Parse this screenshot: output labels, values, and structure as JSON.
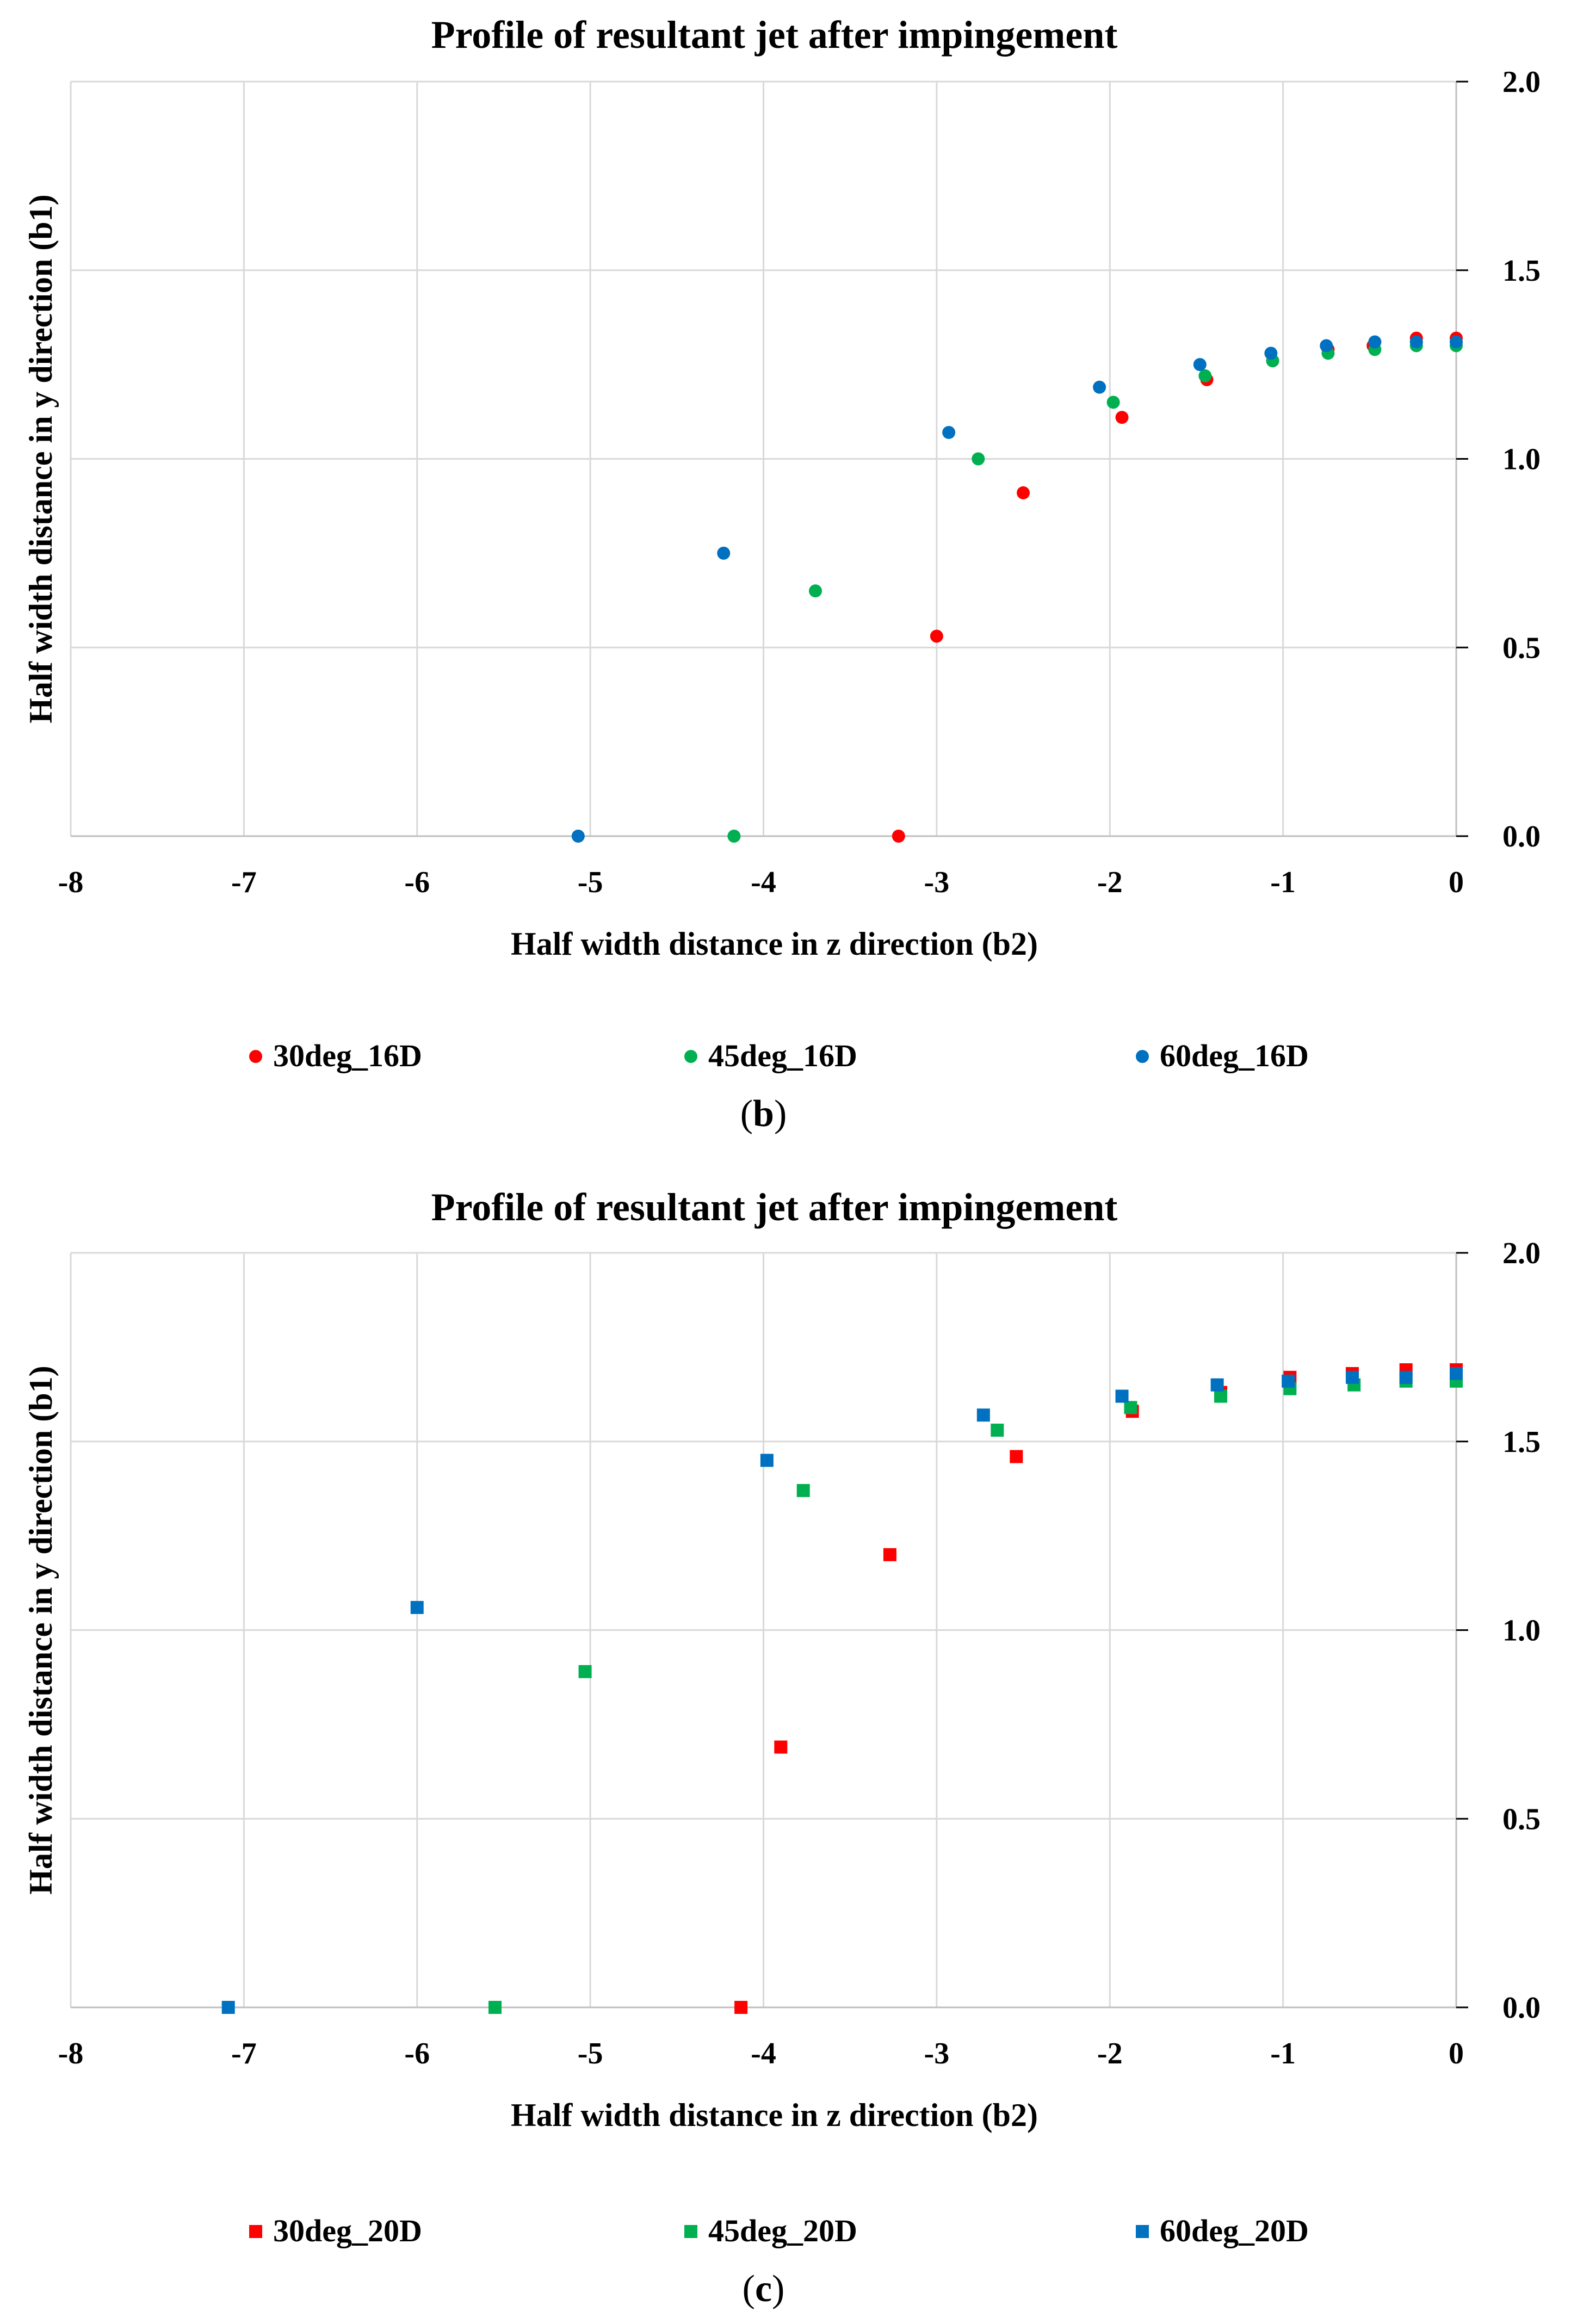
{
  "chart_data": [
    {
      "type": "scatter",
      "title": "Profile of resultant jet after impingement",
      "xlabel": "Half width distance in z direction (b2)",
      "ylabel": "Half width distance in y direction (b1)",
      "xlim": [
        -8,
        0
      ],
      "ylim": [
        0,
        2
      ],
      "xticks": [
        "-8",
        "-7",
        "-6",
        "-5",
        "-4",
        "-3",
        "-2",
        "-1",
        "0"
      ],
      "yticks": [
        "0.0",
        "0.5",
        "1.0",
        "1.5",
        "2.0"
      ],
      "marker": "circle",
      "panel_label": "b",
      "legend_position": "bottom",
      "series": [
        {
          "name": "30deg_16D",
          "color": "#ff0000",
          "points": [
            [
              -3.22,
              0.0
            ],
            [
              -3.0,
              0.53
            ],
            [
              -2.5,
              0.91
            ],
            [
              -1.93,
              1.11
            ],
            [
              -1.44,
              1.21
            ],
            [
              -1.06,
              1.26
            ],
            [
              -0.74,
              1.29
            ],
            [
              -0.48,
              1.3
            ],
            [
              -0.23,
              1.32
            ],
            [
              0.0,
              1.32
            ]
          ]
        },
        {
          "name": "45deg_16D",
          "color": "#00b050",
          "points": [
            [
              -4.17,
              0.0
            ],
            [
              -3.7,
              0.65
            ],
            [
              -2.76,
              1.0
            ],
            [
              -1.98,
              1.15
            ],
            [
              -1.45,
              1.22
            ],
            [
              -1.06,
              1.26
            ],
            [
              -0.74,
              1.28
            ],
            [
              -0.47,
              1.29
            ],
            [
              -0.23,
              1.3
            ],
            [
              0.0,
              1.3
            ]
          ]
        },
        {
          "name": "60deg_16D",
          "color": "#0070c0",
          "points": [
            [
              -5.07,
              0.0
            ],
            [
              -4.23,
              0.75
            ],
            [
              -2.93,
              1.07
            ],
            [
              -2.06,
              1.19
            ],
            [
              -1.48,
              1.25
            ],
            [
              -1.07,
              1.28
            ],
            [
              -0.75,
              1.3
            ],
            [
              -0.47,
              1.31
            ],
            [
              -0.23,
              1.31
            ],
            [
              0.0,
              1.31
            ]
          ]
        }
      ]
    },
    {
      "type": "scatter",
      "title": "Profile of resultant jet after impingement",
      "xlabel": "Half width distance in z direction (b2)",
      "ylabel": "Half width distance in y direction (b1)",
      "xlim": [
        -8,
        0
      ],
      "ylim": [
        0,
        2
      ],
      "xticks": [
        "-8",
        "-7",
        "-6",
        "-5",
        "-4",
        "-3",
        "-2",
        "-1",
        "0"
      ],
      "yticks": [
        "0.0",
        "0.5",
        "1.0",
        "1.5",
        "2.0"
      ],
      "marker": "square",
      "panel_label": "c",
      "legend_position": "bottom",
      "series": [
        {
          "name": "30deg_20D",
          "color": "#ff0000",
          "points": [
            [
              -4.13,
              0.0
            ],
            [
              -3.9,
              0.69
            ],
            [
              -3.27,
              1.2
            ],
            [
              -2.54,
              1.46
            ],
            [
              -1.87,
              1.58
            ],
            [
              -1.36,
              1.63
            ],
            [
              -0.96,
              1.67
            ],
            [
              -0.6,
              1.68
            ],
            [
              -0.29,
              1.69
            ],
            [
              0.0,
              1.69
            ]
          ]
        },
        {
          "name": "45deg_20D",
          "color": "#00b050",
          "points": [
            [
              -5.55,
              0.0
            ],
            [
              -5.03,
              0.89
            ],
            [
              -3.77,
              1.37
            ],
            [
              -2.65,
              1.53
            ],
            [
              -1.88,
              1.59
            ],
            [
              -1.36,
              1.62
            ],
            [
              -0.96,
              1.64
            ],
            [
              -0.59,
              1.65
            ],
            [
              -0.29,
              1.66
            ],
            [
              0.0,
              1.66
            ]
          ]
        },
        {
          "name": "60deg_20D",
          "color": "#0070c0",
          "points": [
            [
              -7.09,
              0.0
            ],
            [
              -6.0,
              1.06
            ],
            [
              -3.98,
              1.45
            ],
            [
              -2.73,
              1.57
            ],
            [
              -1.93,
              1.62
            ],
            [
              -1.38,
              1.65
            ],
            [
              -0.97,
              1.66
            ],
            [
              -0.6,
              1.67
            ],
            [
              -0.29,
              1.67
            ],
            [
              0.0,
              1.68
            ]
          ]
        }
      ]
    }
  ]
}
